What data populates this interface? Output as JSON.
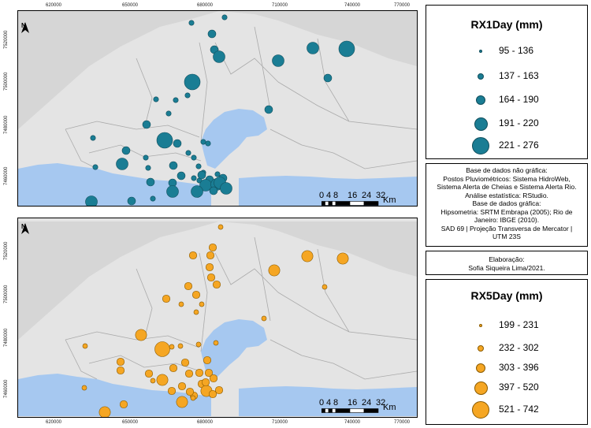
{
  "map1": {
    "ticks_x": [
      "620000",
      "650000",
      "680000",
      "710000",
      "740000",
      "770000"
    ],
    "ticks_y": [
      "7520000",
      "7500000",
      "7480000",
      "7460000"
    ],
    "north_label": "N",
    "scale_numbers": [
      "0",
      "4",
      "8",
      "16",
      "24",
      "32"
    ],
    "scale_unit": "Km",
    "symbol_color": "#1a7d94"
  },
  "map2": {
    "ticks_x": [
      "620000",
      "650000",
      "680000",
      "710000",
      "740000",
      "770000"
    ],
    "ticks_y": [
      "7520000",
      "7500000",
      "7480000",
      "7460000"
    ],
    "north_label": "N",
    "scale_numbers": [
      "0",
      "4",
      "8",
      "16",
      "24",
      "32"
    ],
    "scale_unit": "Km",
    "symbol_color": "#f5a623"
  },
  "legend1": {
    "title": "RX1Day (mm)",
    "classes": [
      "95 - 136",
      "137 - 163",
      "164 - 190",
      "191 - 220",
      "221 - 276"
    ]
  },
  "legend2": {
    "title": "RX5Day (mm)",
    "classes": [
      "199 - 231",
      "232 - 302",
      "303 - 396",
      "397 - 520",
      "521 - 742"
    ]
  },
  "info": {
    "lines": [
      "Base de dados não gráfica:",
      "Postos Pluviométricos: Sistema HidroWeb,",
      "Sistema Alerta de Cheias e Sistema Alerta Rio.",
      "Análise estatística: RStudio.",
      "Base de dados gráfica:",
      "Hipsometria: SRTM Embrapa (2005); Rio de",
      "Janeiro: IBGE (2010).",
      "SAD 69 | Projeção Transversa de Mercator |",
      "UTM 23S"
    ]
  },
  "credits": {
    "lines": [
      "Elaboração:",
      "Sofia Siqueira Lima/2021."
    ]
  },
  "colors": {
    "water": "#a6c8f0",
    "land": "#e4e4e4",
    "outside": "#d6d6d6",
    "rx1": "#1a7d94",
    "rx5": "#f5a623"
  }
}
